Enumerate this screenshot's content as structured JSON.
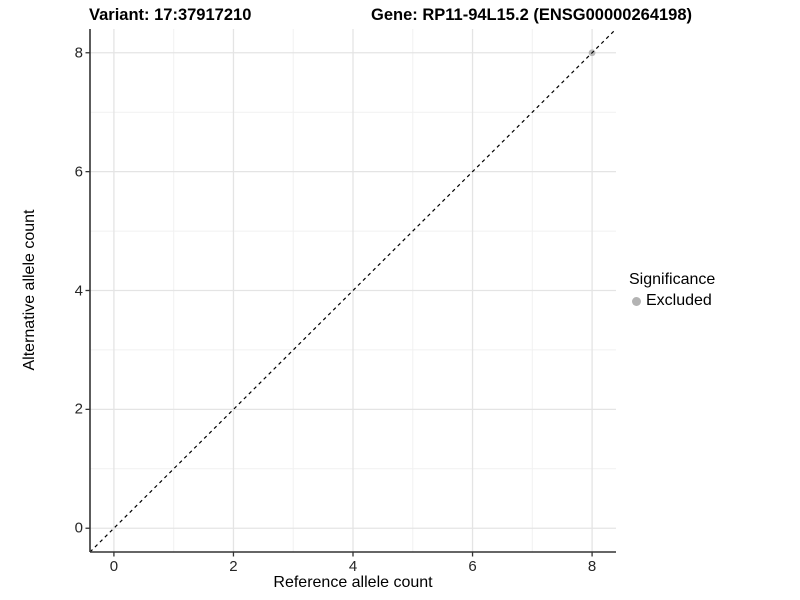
{
  "chart_data": {
    "type": "scatter",
    "title_left": "Variant: 17:37917210",
    "title_right": "Gene: RP11-94L15.2 (ENSG00000264198)",
    "xlabel": "Reference allele count",
    "ylabel": "Alternative allele count",
    "xlim": [
      -0.4,
      8.4
    ],
    "ylim": [
      -0.4,
      8.4
    ],
    "x_ticks": [
      0,
      2,
      4,
      6,
      8
    ],
    "y_ticks": [
      0,
      2,
      4,
      6,
      8
    ],
    "x_minor_ticks": [
      1,
      3,
      5,
      7
    ],
    "y_minor_ticks": [
      1,
      3,
      5,
      7
    ],
    "grid": "major+minor",
    "series": [
      {
        "name": "Excluded",
        "marker": "circle",
        "color": "#b9b9b9",
        "points": [
          [
            8,
            8
          ]
        ]
      }
    ],
    "reference_line": {
      "type": "identity",
      "style": "dashed",
      "color": "#000000",
      "from": [
        -0.4,
        -0.4
      ],
      "to": [
        8.4,
        8.4
      ]
    },
    "legend": {
      "position": "right",
      "title": "Significance",
      "items": [
        {
          "label": "Excluded",
          "color": "#b3b3b3"
        }
      ]
    }
  },
  "colors": {
    "background": "#ffffff",
    "grid_major": "#e4e4e4",
    "grid_minor": "#f1f1f1",
    "axis_line": "#333333",
    "tick_mark": "#333333",
    "text": "#000000"
  }
}
